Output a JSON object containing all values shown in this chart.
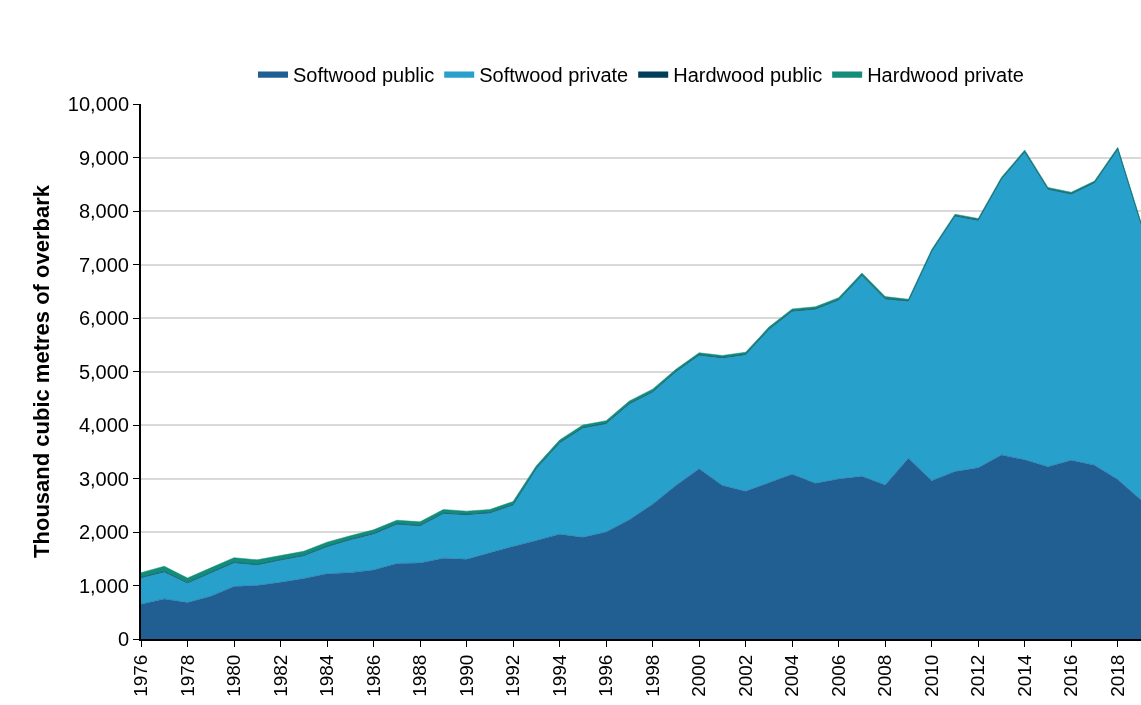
{
  "chart_data": {
    "type": "area",
    "stacked": true,
    "ylabel": "Thousand cubic metres of overbark",
    "x": [
      1976,
      1977,
      1978,
      1979,
      1980,
      1981,
      1982,
      1983,
      1984,
      1985,
      1986,
      1987,
      1988,
      1989,
      1990,
      1991,
      1992,
      1993,
      1994,
      1995,
      1996,
      1997,
      1998,
      1999,
      2000,
      2001,
      2002,
      2003,
      2004,
      2005,
      2006,
      2007,
      2008,
      2009,
      2010,
      2011,
      2012,
      2013,
      2014,
      2015,
      2016,
      2017,
      2018,
      2019
    ],
    "series": [
      {
        "name": "Softwood public",
        "color": "#215f93",
        "values": [
          650,
          750,
          680,
          800,
          980,
          1000,
          1060,
          1130,
          1220,
          1240,
          1290,
          1410,
          1420,
          1510,
          1490,
          1610,
          1730,
          1840,
          1960,
          1900,
          2000,
          2230,
          2520,
          2870,
          3180,
          2870,
          2760,
          2920,
          3080,
          2910,
          2990,
          3040,
          2880,
          3380,
          2960,
          3130,
          3200,
          3440,
          3350,
          3220,
          3340,
          3250,
          2980,
          2600
        ]
      },
      {
        "name": "Softwood private",
        "color": "#28a0cc",
        "values": [
          490,
          500,
          360,
          430,
          440,
          380,
          410,
          420,
          500,
          610,
          670,
          730,
          690,
          830,
          830,
          740,
          770,
          1340,
          1700,
          2040,
          2020,
          2160,
          2090,
          2120,
          2120,
          2380,
          2550,
          2860,
          3040,
          3250,
          3340,
          3750,
          3470,
          2930,
          4280,
          4770,
          4620,
          5150,
          5750,
          5180,
          4970,
          5270,
          6170,
          5150
        ]
      },
      {
        "name": "Hardwood public",
        "color": "#003d59",
        "values": [
          10,
          10,
          10,
          10,
          10,
          10,
          10,
          10,
          10,
          10,
          10,
          10,
          10,
          10,
          10,
          10,
          10,
          10,
          10,
          10,
          10,
          10,
          10,
          10,
          10,
          10,
          10,
          10,
          10,
          10,
          10,
          10,
          10,
          10,
          10,
          10,
          10,
          10,
          10,
          10,
          10,
          10,
          10,
          10
        ]
      },
      {
        "name": "Hardwood private",
        "color": "#138c7a",
        "values": [
          90,
          100,
          90,
          90,
          90,
          90,
          80,
          80,
          80,
          70,
          70,
          70,
          70,
          70,
          60,
          60,
          60,
          50,
          50,
          50,
          50,
          50,
          50,
          40,
          40,
          40,
          40,
          40,
          40,
          40,
          40,
          40,
          40,
          30,
          30,
          30,
          30,
          30,
          30,
          30,
          30,
          30,
          30,
          30
        ]
      }
    ],
    "xlim": [
      1976,
      2019
    ],
    "xticks": [
      1976,
      1978,
      1980,
      1982,
      1984,
      1986,
      1988,
      1990,
      1992,
      1994,
      1996,
      1998,
      2000,
      2002,
      2004,
      2006,
      2008,
      2010,
      2012,
      2014,
      2016,
      2018
    ],
    "ylim": [
      0,
      10000
    ],
    "yticks": [
      {
        "value": 0,
        "label": "0"
      },
      {
        "value": 1000,
        "label": "1,000"
      },
      {
        "value": 2000,
        "label": "2,000"
      },
      {
        "value": 3000,
        "label": "3,000"
      },
      {
        "value": 4000,
        "label": "4,000"
      },
      {
        "value": 5000,
        "label": "5,000"
      },
      {
        "value": 6000,
        "label": "6,000"
      },
      {
        "value": 7000,
        "label": "7,000"
      },
      {
        "value": 8000,
        "label": "8,000"
      },
      {
        "value": 9000,
        "label": "9,000"
      },
      {
        "value": 10000,
        "label": "10,000"
      }
    ],
    "grid": "y",
    "legend": "top"
  }
}
